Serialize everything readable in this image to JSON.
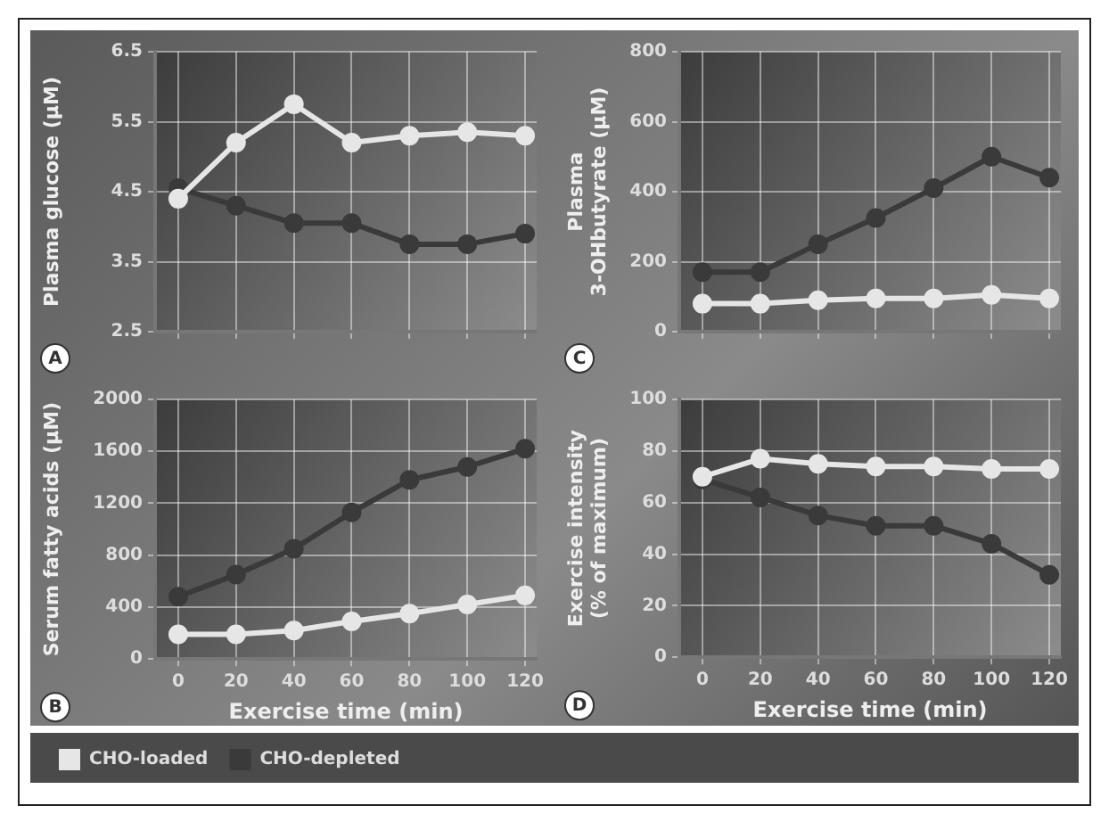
{
  "chart_data": [
    {
      "type": "line",
      "ylabel": "Plasma glucose (μM)",
      "annotations": [
        "A"
      ],
      "x": [
        0,
        20,
        40,
        60,
        80,
        100,
        120
      ],
      "xlim": [
        -8,
        124
      ],
      "xticks": [
        0,
        20,
        40,
        60,
        80,
        100,
        120
      ],
      "ylim": [
        2.5,
        6.5
      ],
      "yticks": [
        2.5,
        3.5,
        4.5,
        5.5,
        6.5
      ],
      "tick_labels": "y",
      "grid": true,
      "marker": "circle",
      "series": [
        {
          "color": "#e6e6e6",
          "values": [
            4.4,
            5.2,
            5.75,
            5.2,
            5.3,
            5.35,
            5.3
          ]
        },
        {
          "color": "#3a3a3a",
          "values": [
            4.55,
            4.3,
            4.05,
            4.05,
            3.75,
            3.75,
            3.9
          ]
        }
      ]
    },
    {
      "type": "line",
      "ylabel": "Plasma\n3-OHbutyrate (μM)",
      "annotations": [
        "C"
      ],
      "x": [
        0,
        20,
        40,
        60,
        80,
        100,
        120
      ],
      "xlim": [
        -8,
        124
      ],
      "xticks": [
        0,
        20,
        40,
        60,
        80,
        100,
        120
      ],
      "ylim": [
        0,
        800
      ],
      "yticks": [
        0,
        200,
        400,
        600,
        800
      ],
      "tick_labels": "y",
      "grid": true,
      "marker": "circle",
      "series": [
        {
          "color": "#e6e6e6",
          "values": [
            80,
            80,
            90,
            95,
            95,
            105,
            95
          ]
        },
        {
          "color": "#3a3a3a",
          "values": [
            170,
            170,
            250,
            325,
            410,
            500,
            440
          ]
        }
      ]
    },
    {
      "type": "line",
      "xlabel": "Exercise time (min)",
      "ylabel": "Serum fatty acids (μM)",
      "annotations": [
        "B"
      ],
      "x": [
        0,
        20,
        40,
        60,
        80,
        100,
        120
      ],
      "xlim": [
        -8,
        124
      ],
      "xticks": [
        0,
        20,
        40,
        60,
        80,
        100,
        120
      ],
      "ylim": [
        0,
        2000
      ],
      "yticks": [
        0,
        400,
        800,
        1200,
        1600,
        2000
      ],
      "grid": true,
      "marker": "circle",
      "legend": "bottom",
      "series": [
        {
          "name": "CHO-loaded",
          "color": "#e6e6e6",
          "values": [
            190,
            190,
            220,
            290,
            350,
            420,
            490
          ]
        },
        {
          "name": "CHO-depleted",
          "color": "#3a3a3a",
          "values": [
            480,
            650,
            850,
            1130,
            1380,
            1480,
            1620
          ]
        }
      ]
    },
    {
      "type": "line",
      "xlabel": "Exercise time (min)",
      "ylabel": "Exercise intensity\n(% of maximum)",
      "annotations": [
        "D"
      ],
      "x": [
        0,
        20,
        40,
        60,
        80,
        100,
        120
      ],
      "xlim": [
        -8,
        124
      ],
      "xticks": [
        0,
        20,
        40,
        60,
        80,
        100,
        120
      ],
      "ylim": [
        0,
        100
      ],
      "yticks": [
        0,
        20,
        40,
        60,
        80,
        100
      ],
      "grid": true,
      "marker": "circle",
      "series": [
        {
          "color": "#e6e6e6",
          "values": [
            70,
            77,
            75,
            74,
            74,
            73,
            73
          ]
        },
        {
          "color": "#3a3a3a",
          "values": [
            69,
            62,
            55,
            51,
            51,
            44,
            32
          ]
        }
      ]
    }
  ]
}
